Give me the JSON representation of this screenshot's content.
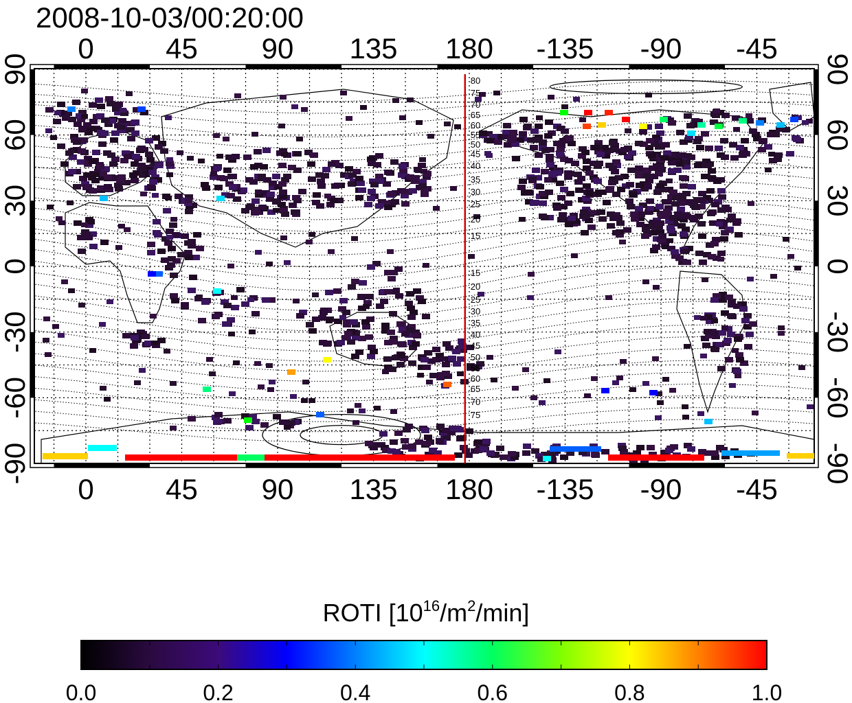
{
  "title": "2008-10-03/00:20:00",
  "map": {
    "lon_ticks_top": [
      "0",
      "45",
      "90",
      "135",
      "180",
      "-135",
      "-90",
      "-45"
    ],
    "lon_ticks_bottom": [
      "0",
      "45",
      "90",
      "135",
      "180",
      "-135",
      "-90",
      "-45"
    ],
    "lat_ticks_left": [
      "90",
      "60",
      "30",
      "0",
      "-30",
      "-60",
      "-90"
    ],
    "lat_ticks_right": [
      "90",
      "60",
      "30",
      "0",
      "-30",
      "-60",
      "-90"
    ],
    "meridian_line_lon": 178,
    "meridian_line_color": "#cc0000",
    "contour_labels": [
      "80",
      "75",
      "70",
      "65",
      "60",
      "55",
      "50",
      "45",
      "40",
      "35",
      "30",
      "25",
      "20",
      "15",
      "15",
      "20",
      "25",
      "30",
      "35",
      "40",
      "45",
      "50",
      "55",
      "60",
      "65",
      "70",
      "75"
    ],
    "colors": {
      "low": "#000000",
      "mid_low": "#3a1560",
      "blue": "#0000ff",
      "cyan": "#00ffff",
      "green": "#00ff00",
      "yellow": "#ffff00",
      "red": "#ff0000"
    }
  },
  "colorbar": {
    "title_main": "ROTI  [10",
    "title_sup1": "16",
    "title_mid": "/m",
    "title_sup2": "2",
    "title_end": "/min]",
    "tick_labels": [
      "0.0",
      "0.2",
      "0.4",
      "0.6",
      "0.8",
      "1.0"
    ],
    "range": [
      0.0,
      1.0
    ]
  }
}
